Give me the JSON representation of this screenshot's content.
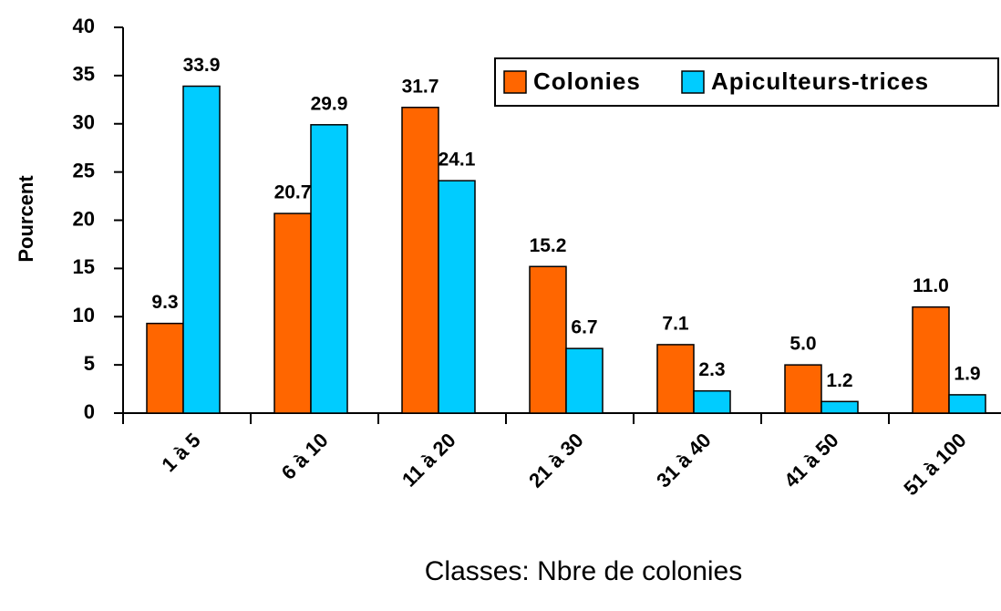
{
  "chart_data": {
    "type": "bar",
    "x_label": "Classes: Nbre de colonies",
    "y_label": "Pourcent",
    "categories": [
      "1 à 5",
      "6 à 10",
      "11 à 20",
      "21 à 30",
      "31 à 40",
      "41 à 50",
      "51 à 100"
    ],
    "series": [
      {
        "name": "Colonies",
        "color": "#FF6600",
        "values": [
          9.3,
          20.7,
          31.7,
          15.2,
          7.1,
          5.0,
          11.0
        ],
        "value_labels": [
          "9.3",
          "20.7",
          "31.7",
          "15.2",
          "7.1",
          "5.0",
          "11.0"
        ]
      },
      {
        "name": "Apiculteurs-trices",
        "color": "#00CCFF",
        "values": [
          33.9,
          29.9,
          24.1,
          6.7,
          2.3,
          1.2,
          1.9
        ],
        "value_labels": [
          "33.9",
          "29.9",
          "24.1",
          "6.7",
          "2.3",
          "1.2",
          "1.9"
        ]
      }
    ],
    "ylim": [
      0,
      40
    ],
    "yticks": [
      0,
      5,
      10,
      15,
      20,
      25,
      30,
      35,
      40
    ],
    "grid": false,
    "legend": "top-right"
  }
}
